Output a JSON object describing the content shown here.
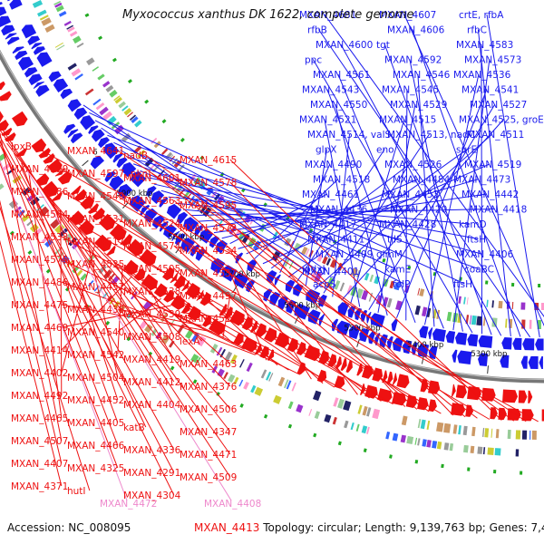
{
  "title": "Myxococcus xanthus DK 1622, complete genome",
  "accession_text": "Accession: NC_008095",
  "topology_text": "Topology: circular; Length: 9,139,763 bp; Genes: 7,410",
  "footer_gene": "MXAN_4413",
  "colors": {
    "forward": "#1a1aee",
    "reverse": "#ee1111",
    "rna": "#ee88cc",
    "backbone": "#777777"
  },
  "ruler": [
    "5300 kbp",
    "5400 kbp",
    "5500 kbp",
    "5600 kbp",
    "5700 kbp",
    "5800 kbp",
    "5900 kbp",
    "6"
  ],
  "forward_labels": [
    "MXAN_4681",
    "MXAN_4607",
    "crtE, rfbA",
    "rfbB",
    "MXAN_4606",
    "rfbC",
    "MXAN_4600",
    "tgt",
    "MXAN_4583",
    "ppc",
    "MXAN_4592",
    "MXAN_4573",
    "MXAN_4561",
    "MXAN_4546",
    "MXAN_4536",
    "MXAN_4543",
    "MXAN_4545",
    "MXAN_4541",
    "MXAN_4550",
    "MXAN_4529",
    "MXAN_4527",
    "MXAN_4521",
    "MXAN_4515",
    "MXAN_4525, groEL",
    "MXAN_4514, valS",
    "MXAN_4513, nadC",
    "MXAN_4511",
    "glpX",
    "eno",
    "surE",
    "MXAN_4490",
    "MXAN_4526",
    "MXAN_4519",
    "MXAN_4518",
    "MXAN_4484",
    "MXAN_4473",
    "MXAN_4461",
    "MXAN_4453",
    "MXAN_4442",
    "MXAN_4436",
    "MXAN_4420",
    "MXAN_4418",
    "MXAN_4417",
    "MXAN_4428",
    "kamD",
    "MXAN_4411",
    "tilS",
    "ftsH",
    "MXAN_4409",
    "glmM",
    "MXAN_4406",
    "pdxJ",
    "kamE",
    "coaBC",
    "acpS",
    "folP",
    "ftsH",
    "MXAN_4401"
  ],
  "reverse_labels": [
    "lpxB",
    "MXAN_4641",
    "nadB",
    "MXAN_4615",
    "MXAN_4599",
    "MXAN_4597, pknI",
    "MXAN_4601",
    "MXAN_4578",
    "MXAN_4586",
    "MXAN_4549",
    "MXAN_4563",
    "MXAN_4595",
    "MXAN_4564",
    "MXAN_4531",
    "MXAN_4524",
    "MXAN_4572",
    "MXAN_4533",
    "MXAN_4517",
    "MXAN_4574",
    "MXAN_4534",
    "MXAN_4575",
    "MXAN_4535",
    "MXAN_4505",
    "MXAN_4537",
    "MXAN_4486",
    "MXAN_4457",
    "MXAN_4538",
    "MXAN_4497",
    "MXAN_4475",
    "MXAN_4438",
    "MXAN_4539",
    "MXAN_4516",
    "MXAN_4469",
    "MXAN_4540",
    "MXAN_4508",
    "lexA",
    "MXAN_4414",
    "MXAN_4542",
    "MXAN_4419",
    "MXAN_4463",
    "MXAN_4402",
    "MXAN_4504",
    "MXAN_4412",
    "MXAN_4376",
    "MXAN_4492",
    "MXAN_4452",
    "MXAN_4404",
    "MXAN_4506",
    "MXAN_4465",
    "MXAN_4405",
    "katB",
    "MXAN_4347",
    "MXAN_4507",
    "MXAN_4466",
    "MXAN_4336",
    "MXAN_4471",
    "MXAN_4407",
    "MXAN_4325",
    "MXAN_4291",
    "MXAN_4509",
    "MXAN_4371",
    "hutI",
    "MXAN_4304"
  ],
  "rna_labels": [
    "MXAN_4472",
    "MXAN_4408"
  ]
}
